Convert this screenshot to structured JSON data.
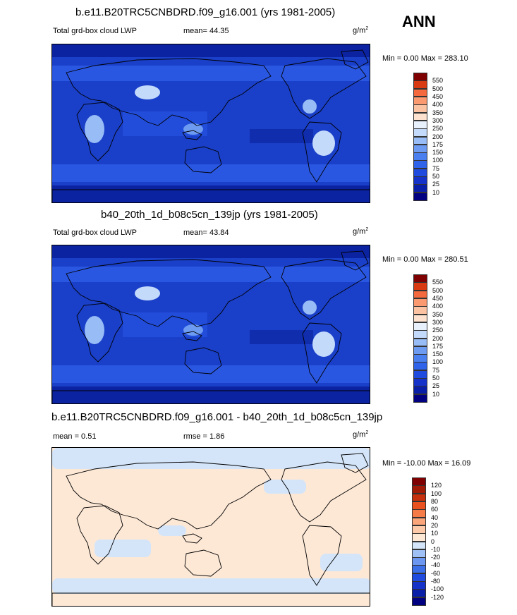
{
  "season": "ANN",
  "panels": [
    {
      "title": "b.e11.B20TRC5CNBDRD.f09_g16.001 (yrs 1981-2005)",
      "left_label": "Total grd-box cloud LWP",
      "mid_label": "mean=  44.35",
      "units_base": "g/m",
      "units_sup": "2",
      "minmax": "Min =   0.00 Max = 283.10"
    },
    {
      "title": "b40_20th_1d_b08c5cn_139jp (yrs 1981-2005)",
      "left_label": "Total grd-box cloud LWP",
      "mid_label": "mean=  43.84",
      "units_base": "g/m",
      "units_sup": "2",
      "minmax": "Min =   0.00 Max = 280.51"
    },
    {
      "title": "b.e11.B20TRC5CNBDRD.f09_g16.001 - b40_20th_1d_b08c5cn_139jp",
      "left_label": "mean =   0.51",
      "mid_label": "rmse =   1.86",
      "units_base": "g/m",
      "units_sup": "2",
      "minmax": "Min = -10.00 Max =  16.09"
    }
  ],
  "chart_data": [
    {
      "type": "heatmap",
      "title": "b.e11.B20TRC5CNBDRD.f09_g16.001 (yrs 1981-2005)",
      "variable": "Total grd-box cloud LWP",
      "units": "g/m2",
      "mean": 44.35,
      "min": 0.0,
      "max": 283.1,
      "colorbar_levels": [
        10,
        25,
        50,
        75,
        100,
        150,
        175,
        200,
        250,
        300,
        350,
        400,
        450,
        500,
        550
      ],
      "colorbar_colors": [
        "#000080",
        "#0a1fa8",
        "#1533c8",
        "#1f4bdf",
        "#2f63ea",
        "#4a7fef",
        "#6d9bf2",
        "#98bcf6",
        "#c4dafb",
        "#e8f0fb",
        "#fde3cf",
        "#fcc3a2",
        "#fb9a70",
        "#f46a3e",
        "#d93a12",
        "#7f0000"
      ],
      "dominant_field_color": "#1a3fc8"
    },
    {
      "type": "heatmap",
      "title": "b40_20th_1d_b08c5cn_139jp (yrs 1981-2005)",
      "variable": "Total grd-box cloud LWP",
      "units": "g/m2",
      "mean": 43.84,
      "min": 0.0,
      "max": 280.51,
      "colorbar_levels": [
        10,
        25,
        50,
        75,
        100,
        150,
        175,
        200,
        250,
        300,
        350,
        400,
        450,
        500,
        550
      ],
      "colorbar_colors": [
        "#000080",
        "#0a1fa8",
        "#1533c8",
        "#1f4bdf",
        "#2f63ea",
        "#4a7fef",
        "#6d9bf2",
        "#98bcf6",
        "#c4dafb",
        "#e8f0fb",
        "#fde3cf",
        "#fcc3a2",
        "#fb9a70",
        "#f46a3e",
        "#d93a12",
        "#7f0000"
      ],
      "dominant_field_color": "#1a3fc8"
    },
    {
      "type": "heatmap",
      "title": "b.e11.B20TRC5CNBDRD.f09_g16.001 - b40_20th_1d_b08c5cn_139jp",
      "units": "g/m2",
      "mean": 0.51,
      "rmse": 1.86,
      "min": -10.0,
      "max": 16.09,
      "colorbar_levels": [
        -120,
        -100,
        -80,
        -60,
        -40,
        -20,
        -10,
        0,
        10,
        20,
        40,
        60,
        80,
        100,
        120
      ],
      "colorbar_colors": [
        "#000080",
        "#0a1fa8",
        "#1533c8",
        "#1f4bdf",
        "#3a6fe8",
        "#6b97f0",
        "#9fc0f5",
        "#d4e5f9",
        "#fde8d6",
        "#fccaa8",
        "#fba57a",
        "#f57b49",
        "#e9521f",
        "#c6300c",
        "#a01a05",
        "#7f0000"
      ],
      "dominant_field_colors": [
        "#fde8d6",
        "#d4e5f9"
      ]
    }
  ]
}
